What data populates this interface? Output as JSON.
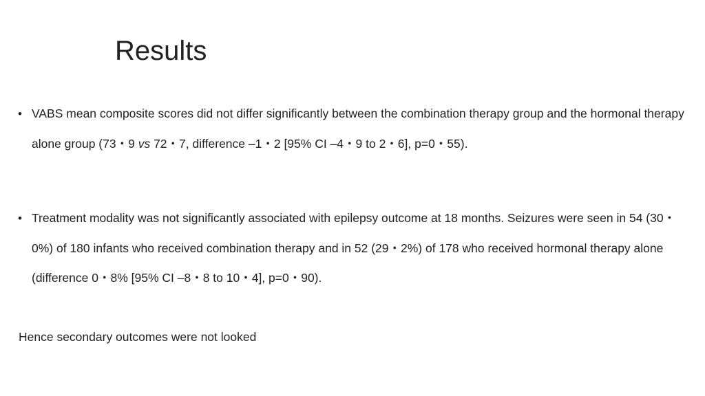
{
  "slide": {
    "title": "Results",
    "bullet_glyph": "•",
    "bullets": [
      {
        "pre": "VABS mean composite scores did not differ  significantly between the combination therapy group and the hormonal therapy alone group  (73・9 ",
        "vs": "vs",
        "post": " 72・7, difference –1・2 [95% CI –4・9 to 2・6], p=0・55)."
      },
      {
        "text": "Treatment modality was not significantly associated with epilepsy outcome at 18 months. Seizures were seen in 54 (30・0%) of 180 infants who received combination therapy and in 52 (29・2%) of 178 who received hormonal therapy alone (difference 0・8% [95% CI –8・8 to 10・4], p=0・90)."
      }
    ],
    "conclusion": "Hence secondary outcomes were not looked"
  }
}
